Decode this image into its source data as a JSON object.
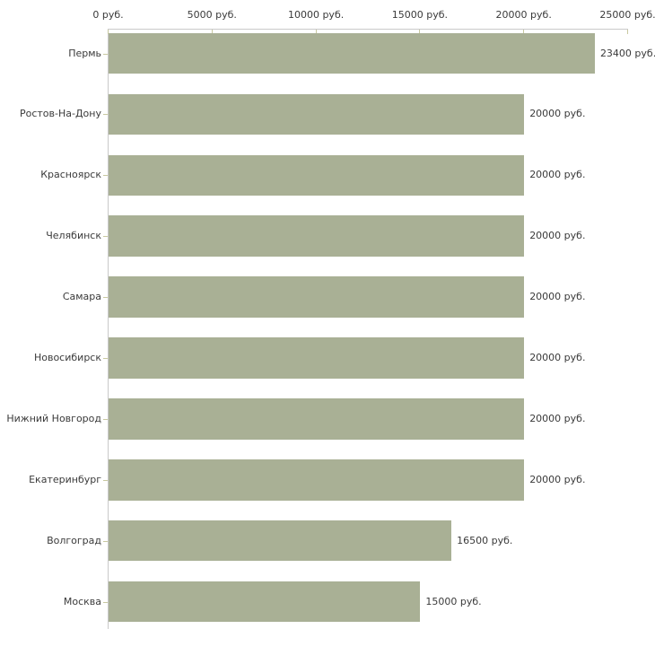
{
  "chart_data": {
    "type": "bar",
    "orientation": "horizontal",
    "title": "",
    "xlabel": "",
    "ylabel": "",
    "categories": [
      "Пермь",
      "Ростов-На-Дону",
      "Красноярск",
      "Челябинск",
      "Самара",
      "Новосибирск",
      "Нижний Новгород",
      "Екатеринбург",
      "Волгоград",
      "Москва"
    ],
    "values": [
      23400,
      20000,
      20000,
      20000,
      20000,
      20000,
      20000,
      20000,
      16500,
      15000
    ],
    "value_labels": [
      "23400 руб.",
      "20000 руб.",
      "20000 руб.",
      "20000 руб.",
      "20000 руб.",
      "20000 руб.",
      "20000 руб.",
      "20000 руб.",
      "16500 руб.",
      "15000 руб."
    ],
    "x_ticks": [
      0,
      5000,
      10000,
      15000,
      20000,
      25000
    ],
    "x_tick_labels": [
      "0 руб.",
      "5000 руб.",
      "10000 руб.",
      "15000 руб.",
      "20000 руб.",
      "25000 руб."
    ],
    "xlim": [
      0,
      25000
    ],
    "x_axis_position": "top",
    "grid": false,
    "legend": "none",
    "colors": {
      "bar": "#a9b095",
      "axis_line": "#c9c9c9",
      "tick": "#c8c8a0",
      "text": "#3a3a3a",
      "background": "#ffffff"
    }
  }
}
